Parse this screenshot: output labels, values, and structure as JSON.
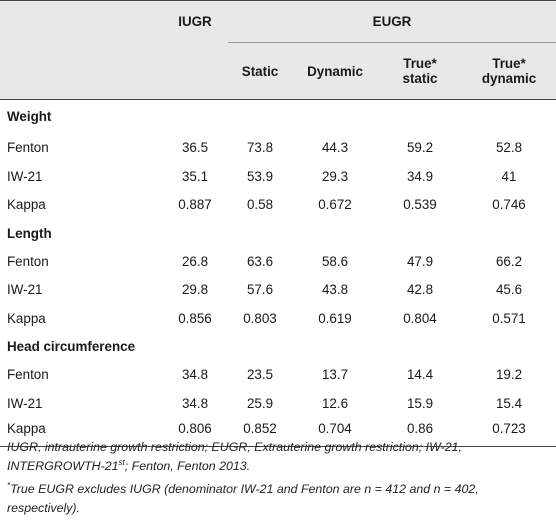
{
  "header": {
    "iugr": "IUGR",
    "eugr": "EUGR",
    "cols": [
      "Static",
      "Dynamic",
      "True*",
      "True*"
    ],
    "cols2": [
      "",
      "",
      "static",
      "dynamic"
    ]
  },
  "sections": [
    {
      "title": "Weight",
      "rows": [
        {
          "label": "Fenton",
          "values": [
            "36.5",
            "73.8",
            "44.3",
            "59.2",
            "52.8"
          ]
        },
        {
          "label": "IW-21",
          "values": [
            "35.1",
            "53.9",
            "29.3",
            "34.9",
            "41"
          ]
        },
        {
          "label": "Kappa",
          "values": [
            "0.887",
            "0.58",
            "0.672",
            "0.539",
            "0.746"
          ]
        }
      ]
    },
    {
      "title": "Length",
      "rows": [
        {
          "label": "Fenton",
          "values": [
            "26.8",
            "63.6",
            "58.6",
            "47.9",
            "66.2"
          ]
        },
        {
          "label": "IW-21",
          "values": [
            "29.8",
            "57.6",
            "43.8",
            "42.8",
            "45.6"
          ]
        },
        {
          "label": "Kappa",
          "values": [
            "0.856",
            "0.803",
            "0.619",
            "0.804",
            "0.571"
          ]
        }
      ]
    },
    {
      "title": "Head circumference",
      "rows": [
        {
          "label": "Fenton",
          "values": [
            "34.8",
            "23.5",
            "13.7",
            "14.4",
            "19.2"
          ]
        },
        {
          "label": "IW-21",
          "values": [
            "34.8",
            "25.9",
            "12.6",
            "15.9",
            "15.4"
          ]
        },
        {
          "label": "Kappa",
          "values": [
            "0.806",
            "0.852",
            "0.704",
            "0.86",
            "0.723"
          ]
        }
      ]
    }
  ],
  "notes": {
    "line1a": "IUGR, intrauterine growth restriction; EUGR, Extrauterine growth restriction; IW-21, INTERGROWTH-21",
    "line1_sup": "st",
    "line1b": "; Fenton, Fenton 2013.",
    "line2_mark": "*",
    "line2": "True EUGR excludes IUGR (denominator IW-21 and Fenton are n = 412 and n = 402, respectively)."
  }
}
